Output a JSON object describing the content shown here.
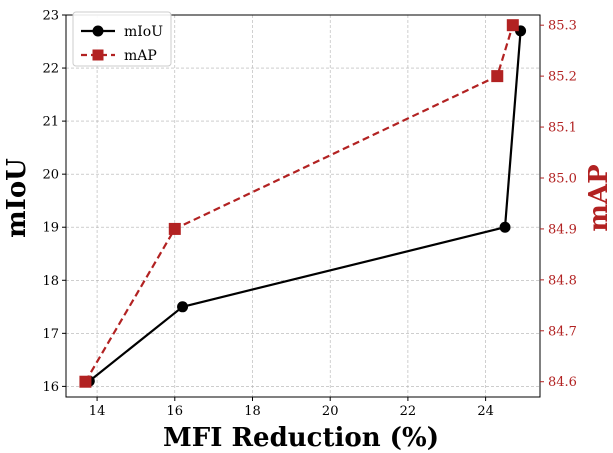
{
  "chart_data": {
    "type": "line",
    "xlabel": "MFI Reduction (%)",
    "xlim": [
      13.2,
      25.4
    ],
    "x_ticks": [
      "14",
      "16",
      "18",
      "20",
      "22",
      "24"
    ],
    "grid": true,
    "legend_position": "top-left",
    "y_left": {
      "label": "mIoU",
      "lim": [
        15.8,
        23.0
      ],
      "ticks": [
        "16",
        "17",
        "18",
        "19",
        "20",
        "21",
        "22",
        "23"
      ]
    },
    "y_right": {
      "label": "mAP",
      "lim": [
        84.57,
        85.32
      ],
      "ticks": [
        "84.6",
        "84.7",
        "84.8",
        "84.9",
        "85.0",
        "85.1",
        "85.2",
        "85.3"
      ],
      "color": "#b22222"
    },
    "series": [
      {
        "name": "mIoU",
        "axis": "left",
        "color": "#000000",
        "marker": "circle",
        "line_style": "solid",
        "x": [
          13.8,
          16.2,
          24.5,
          24.9
        ],
        "y": [
          16.1,
          17.5,
          19.0,
          22.7
        ]
      },
      {
        "name": "mAP",
        "axis": "right",
        "color": "#b22222",
        "marker": "square",
        "line_style": "dashed",
        "x": [
          13.7,
          16.0,
          24.3,
          24.7
        ],
        "y": [
          84.6,
          84.9,
          85.2,
          85.3
        ]
      }
    ]
  }
}
